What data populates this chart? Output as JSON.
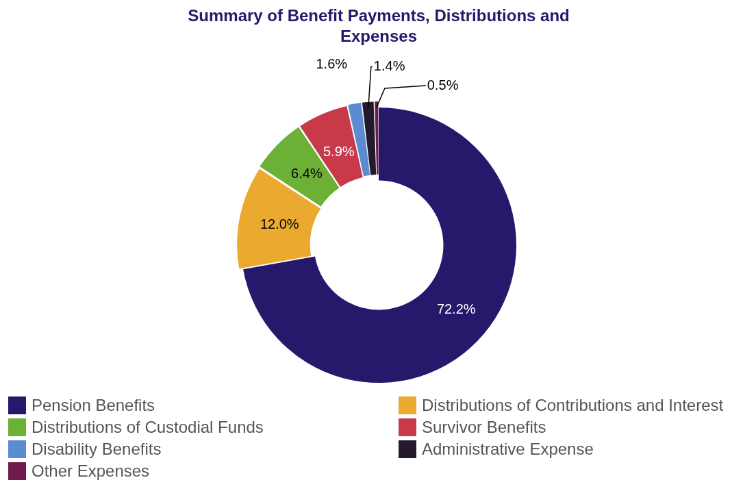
{
  "chart_data": {
    "type": "donut",
    "title": "Summary of Benefit Payments, Distributions and Expenses",
    "categories": [
      "Pension Benefits",
      "Distributions of Contributions and Interest",
      "Distributions of Custodial Funds",
      "Survivor Benefits",
      "Disability Benefits",
      "Administrative Expense",
      "Other Expenses"
    ],
    "values": [
      72.2,
      12.0,
      6.4,
      5.9,
      1.6,
      1.4,
      0.5
    ],
    "value_labels": [
      "72.2%",
      "12.0%",
      "6.4%",
      "5.9%",
      "1.6%",
      "1.4%",
      "0.5%"
    ],
    "colors": [
      "#26186a",
      "#eaaa2f",
      "#6db036",
      "#c83a4a",
      "#5b8bd0",
      "#231a2e",
      "#6e1a4b"
    ],
    "legend": "bottom"
  }
}
